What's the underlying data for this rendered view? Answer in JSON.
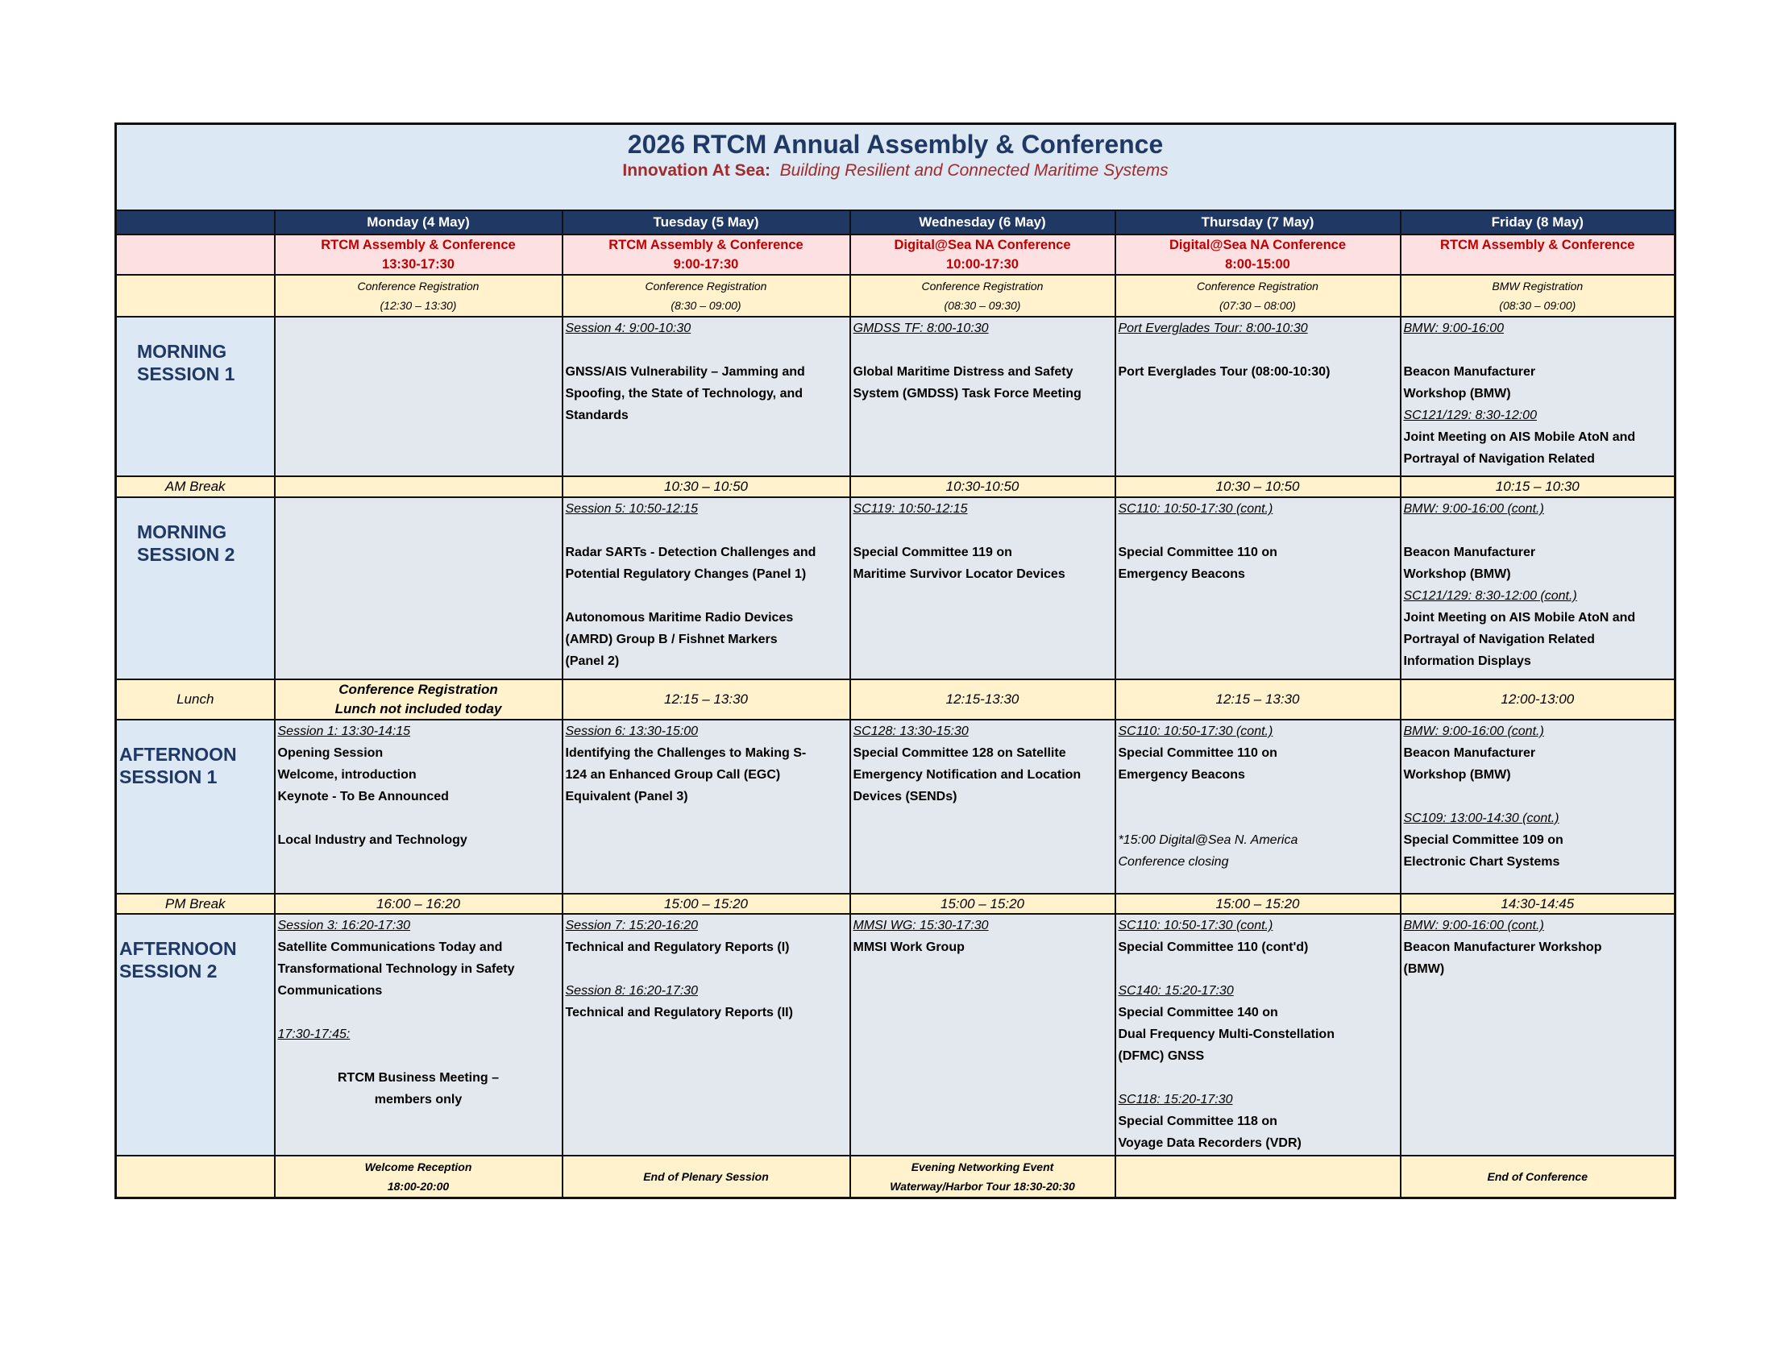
{
  "header": {
    "title": "2026 RTCM Annual Assembly & Conference",
    "subtitle_bold": "Innovation At Sea:",
    "subtitle_italic": "Building Resilient and Connected Maritime Systems"
  },
  "colors": {
    "navy": "#1f3864",
    "conference_red": "#c00000",
    "pink": "#fde0e2",
    "yellow": "#fff2cc",
    "session_gray": "#e3e8ee",
    "light_blue": "#dde8f5"
  },
  "days": [
    "Monday (4 May)",
    "Tuesday (5 May)",
    "Wednesday (6 May)",
    "Thursday (7 May)",
    "Friday (8 May)"
  ],
  "conference_row": [
    {
      "name": "RTCM Assembly & Conference",
      "hours": "13:30-17:30"
    },
    {
      "name": "RTCM Assembly & Conference",
      "hours": "9:00-17:30"
    },
    {
      "name": "Digital@Sea NA Conference",
      "hours": "10:00-17:30"
    },
    {
      "name": "Digital@Sea NA Conference",
      "hours": "8:00-15:00"
    },
    {
      "name": "RTCM Assembly & Conference",
      "hours": ""
    }
  ],
  "registration_row": [
    {
      "label": "Conference Registration",
      "time": "(12:30 – 13:30)"
    },
    {
      "label": "Conference Registration",
      "time": "(8:30  – 09:00)"
    },
    {
      "label": "Conference Registration",
      "time": "(08:30 – 09:30)"
    },
    {
      "label": "Conference Registration",
      "time": "(07:30  – 08:00)"
    },
    {
      "label": "BMW Registration",
      "time": "(08:30 – 09:00)"
    }
  ],
  "rows": [
    {
      "type": "session",
      "cls": "ms",
      "label": [
        "MORNING",
        "SESSION 1"
      ],
      "cells": [
        [],
        [
          {
            "k": "slot",
            "t": "Session 4:  9:00-10:30"
          },
          {
            "k": "gap",
            "t": ""
          },
          {
            "k": "ttl",
            "t": "GNSS/AIS Vulnerability – Jamming and"
          },
          {
            "k": "ttl",
            "t": "Spoofing, the State of Technology, and"
          },
          {
            "k": "ttl",
            "t": "Standards"
          }
        ],
        [
          {
            "k": "slot",
            "t": "GMDSS TF:  8:00-10:30"
          },
          {
            "k": "gap",
            "t": ""
          },
          {
            "k": "ttl",
            "t": "Global Maritime Distress and Safety"
          },
          {
            "k": "ttl",
            "t": "System (GMDSS) Task Force Meeting"
          }
        ],
        [
          {
            "k": "slot",
            "t": "Port Everglades Tour: 8:00-10:30"
          },
          {
            "k": "gap",
            "t": ""
          },
          {
            "k": "ttl",
            "t": "Port Everglades Tour (08:00-10:30)"
          }
        ],
        [
          {
            "k": "slot",
            "t": "BMW:  9:00-16:00"
          },
          {
            "k": "gap",
            "t": ""
          },
          {
            "k": "ttl",
            "t": "Beacon Manufacturer"
          },
          {
            "k": "ttl",
            "t": "Workshop (BMW)"
          },
          {
            "k": "slot",
            "t": "SC121/129:  8:30-12:00"
          },
          {
            "k": "ttl",
            "t": "Joint Meeting on AIS Mobile AtoN and"
          },
          {
            "k": "ttl",
            "t": "Portrayal of Navigation Related"
          }
        ]
      ]
    },
    {
      "type": "break",
      "label": "AM Break",
      "h": 26,
      "cells": [
        {
          "lines": []
        },
        {
          "lines": [
            "10:30 – 10:50"
          ]
        },
        {
          "lines": [
            "10:30-10:50"
          ]
        },
        {
          "lines": [
            "10:30 – 10:50"
          ]
        },
        {
          "lines": [
            "10:15 – 10:30"
          ]
        }
      ]
    },
    {
      "type": "session",
      "cls": "ms",
      "label": [
        "MORNING",
        "SESSION 2"
      ],
      "cells": [
        [],
        [
          {
            "k": "slot",
            "t": "Session 5:  10:50-12:15"
          },
          {
            "k": "gap",
            "t": ""
          },
          {
            "k": "ttl",
            "t": "Radar SARTs - Detection Challenges and"
          },
          {
            "k": "ttl",
            "t": "Potential Regulatory Changes (Panel 1)"
          },
          {
            "k": "gap",
            "t": ""
          },
          {
            "k": "ttl",
            "t": "Autonomous Maritime Radio Devices"
          },
          {
            "k": "ttl",
            "t": "(AMRD) Group B / Fishnet Markers"
          },
          {
            "k": "ttl",
            "t": "(Panel 2)"
          }
        ],
        [
          {
            "k": "slot",
            "t": "SC119:  10:50-12:15"
          },
          {
            "k": "gap",
            "t": ""
          },
          {
            "k": "ttl",
            "t": "Special Committee 119 on"
          },
          {
            "k": "ttl",
            "t": "Maritime Survivor Locator Devices"
          }
        ],
        [
          {
            "k": "slot",
            "t": "SC110: 10:50-17:30 (cont.)"
          },
          {
            "k": "gap",
            "t": ""
          },
          {
            "k": "ttl",
            "t": "Special Committee 110 on"
          },
          {
            "k": "ttl",
            "t": "Emergency Beacons"
          }
        ],
        [
          {
            "k": "slot",
            "t": "BMW:  9:00-16:00 (cont.)"
          },
          {
            "k": "gap",
            "t": ""
          },
          {
            "k": "ttl",
            "t": "Beacon Manufacturer"
          },
          {
            "k": "ttl",
            "t": "Workshop (BMW)"
          },
          {
            "k": "slot",
            "t": "SC121/129:  8:30-12:00 (cont.)"
          },
          {
            "k": "ttl",
            "t": "Joint Meeting on AIS Mobile AtoN and"
          },
          {
            "k": "ttl",
            "t": "Portrayal of Navigation Related"
          },
          {
            "k": "ttl",
            "t": "Information Displays"
          }
        ]
      ]
    },
    {
      "type": "break",
      "label": "Lunch",
      "h": 49,
      "cells": [
        {
          "lines": [
            "Conference Registration",
            "Lunch not included today"
          ],
          "small": true
        },
        {
          "lines": [
            "12:15 – 13:30"
          ]
        },
        {
          "lines": [
            "12:15-13:30"
          ]
        },
        {
          "lines": [
            "12:15 – 13:30"
          ]
        },
        {
          "lines": [
            "12:00-13:00"
          ]
        }
      ]
    },
    {
      "type": "session",
      "cls": "as",
      "label": [
        "AFTERNOON",
        "SESSION 1"
      ],
      "cells": [
        [
          {
            "k": "slot",
            "t": "Session 1:  13:30-14:15"
          },
          {
            "k": "ttl",
            "t": "Opening Session"
          },
          {
            "k": "ttl",
            "t": "Welcome, introduction"
          },
          {
            "k": "ttl",
            "t": "Keynote  - To Be Announced"
          },
          {
            "k": "gap",
            "t": ""
          },
          {
            "k": "ttl",
            "t": "Local Industry and Technology"
          }
        ],
        [
          {
            "k": "slot",
            "t": "Session 6:  13:30-15:00"
          },
          {
            "k": "ttl",
            "t": "Identifying the Challenges to Making S-"
          },
          {
            "k": "ttl",
            "t": "124 an Enhanced Group Call (EGC)"
          },
          {
            "k": "ttl",
            "t": "Equivalent (Panel 3)"
          }
        ],
        [
          {
            "k": "slot",
            "t": "SC128:  13:30-15:30"
          },
          {
            "k": "ttl",
            "t": "Special Committee 128 on Satellite"
          },
          {
            "k": "ttl",
            "t": "Emergency Notification and Location"
          },
          {
            "k": "ttl",
            "t": "Devices (SENDs)"
          }
        ],
        [
          {
            "k": "slot",
            "t": "SC110:  10:50-17:30 (cont.)"
          },
          {
            "k": "ttl",
            "t": "Special Committee 110 on"
          },
          {
            "k": "ttl",
            "t": "Emergency Beacons"
          },
          {
            "k": "gap",
            "t": ""
          },
          {
            "k": "gap",
            "t": ""
          },
          {
            "k": "note",
            "t": "*15:00 Digital@Sea N. America"
          },
          {
            "k": "note",
            "t": "Conference closing"
          }
        ],
        [
          {
            "k": "slot",
            "t": "BMW:  9:00-16:00 (cont.)"
          },
          {
            "k": "ttl",
            "t": "Beacon Manufacturer"
          },
          {
            "k": "ttl",
            "t": "Workshop (BMW)"
          },
          {
            "k": "gap",
            "t": ""
          },
          {
            "k": "slot",
            "t": "SC109:  13:00-14:30 (cont.)"
          },
          {
            "k": "ttl",
            "t": "Special Committee 109 on"
          },
          {
            "k": "ttl",
            "t": "Electronic Chart Systems"
          }
        ]
      ]
    },
    {
      "type": "break",
      "label": "PM Break",
      "h": 25,
      "cells": [
        {
          "lines": [
            "16:00 – 16:20"
          ]
        },
        {
          "lines": [
            "15:00 – 15:20"
          ]
        },
        {
          "lines": [
            "15:00 – 15:20"
          ]
        },
        {
          "lines": [
            "15:00 – 15:20"
          ]
        },
        {
          "lines": [
            "14:30-14:45"
          ]
        }
      ]
    },
    {
      "type": "session",
      "cls": "as",
      "label": [
        "AFTERNOON",
        "SESSION 2"
      ],
      "cells": [
        [
          {
            "k": "slot",
            "t": "Session 3:  16:20-17:30"
          },
          {
            "k": "ttl",
            "t": "Satellite Communications Today and"
          },
          {
            "k": "ttl",
            "t": "Transformational Technology in Safety"
          },
          {
            "k": "ttl",
            "t": "Communications"
          },
          {
            "k": "gap",
            "t": ""
          },
          {
            "k": "slot",
            "t": "17:30-17:45:"
          },
          {
            "k": "gap",
            "t": ""
          },
          {
            "k": "ctr",
            "t": "RTCM Business Meeting –"
          },
          {
            "k": "ctr",
            "t": "members only"
          }
        ],
        [
          {
            "k": "slot",
            "t": "Session 7:  15:20-16:20"
          },
          {
            "k": "ttl",
            "t": "Technical and Regulatory Reports (I)"
          },
          {
            "k": "gap",
            "t": ""
          },
          {
            "k": "slot",
            "t": "Session 8:  16:20-17:30"
          },
          {
            "k": "ttl",
            "t": "Technical and Regulatory Reports (II)"
          }
        ],
        [
          {
            "k": "slot",
            "t": "MMSI WG: 15:30-17:30"
          },
          {
            "k": "ttl",
            "t": "MMSI Work Group"
          }
        ],
        [
          {
            "k": "slot",
            "t": "SC110:  10:50-17:30 (cont.)"
          },
          {
            "k": "ttl",
            "t": "Special Committee 110 (cont'd)"
          },
          {
            "k": "gap",
            "t": ""
          },
          {
            "k": "slot",
            "t": "SC140:  15:20-17:30"
          },
          {
            "k": "ttl",
            "t": "Special Committee 140 on"
          },
          {
            "k": "ttl",
            "t": "Dual Frequency Multi-Constellation"
          },
          {
            "k": "ttl",
            "t": "(DFMC) GNSS"
          },
          {
            "k": "gap",
            "t": ""
          },
          {
            "k": "slot",
            "t": "SC118:  15:20-17:30"
          },
          {
            "k": "ttl",
            "t": "Special Committee 118 on"
          },
          {
            "k": "ttl",
            "t": "Voyage Data Recorders (VDR)"
          }
        ],
        [
          {
            "k": "slot",
            "t": "BMW:  9:00-16:00 (cont.)"
          },
          {
            "k": "ttl",
            "t": "Beacon Manufacturer Workshop"
          },
          {
            "k": "ttl",
            "t": "(BMW)"
          }
        ]
      ]
    }
  ],
  "footer_row": [
    [
      "Welcome Reception",
      "18:00-20:00"
    ],
    [
      "End of Plenary Session"
    ],
    [
      "Evening Networking Event",
      "Waterway/Harbor Tour 18:30-20:30"
    ],
    [],
    [
      "End of Conference"
    ]
  ]
}
